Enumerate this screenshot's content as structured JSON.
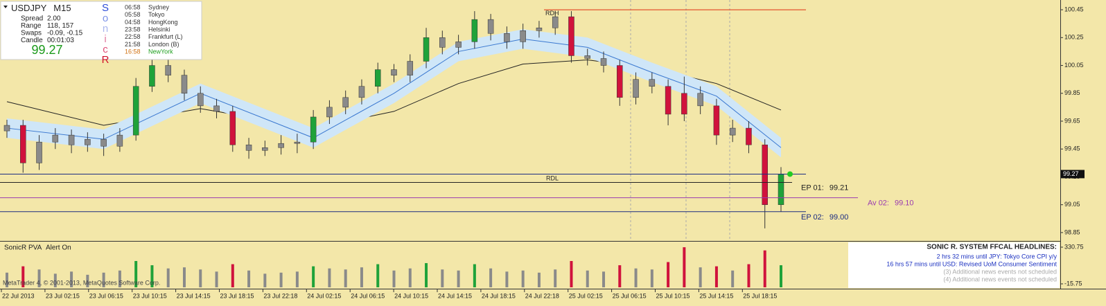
{
  "chart_data": {
    "type": "candlestick",
    "symbol": "USDJPY",
    "timeframe": "M15",
    "info": [
      {
        "label": "Spread",
        "value": "2.00"
      },
      {
        "label": "Range",
        "value": "118, 157"
      },
      {
        "label": "Swaps",
        "value": "-0.09, -0.15"
      },
      {
        "label": "Candle",
        "value": "00:01:03"
      }
    ],
    "bid": 99.27,
    "brand_letters": [
      {
        "text": "S",
        "color": "#2b4bd8"
      },
      {
        "text": "o",
        "color": "#7d93e8"
      },
      {
        "text": "n",
        "color": "#a9b6ee"
      },
      {
        "text": "i",
        "color": "#e07aa0"
      },
      {
        "text": "c",
        "color": "#e0507a"
      },
      {
        "text": "R",
        "color": "#d0102a"
      }
    ],
    "sessions": [
      {
        "time": "06:58",
        "city": "Sydney",
        "time_color": "#333",
        "city_color": "#333"
      },
      {
        "time": "05:58",
        "city": "Tokyo",
        "time_color": "#333",
        "city_color": "#333"
      },
      {
        "time": "04:58",
        "city": "HongKong",
        "time_color": "#333",
        "city_color": "#333"
      },
      {
        "time": "23:58",
        "city": "Helsinki",
        "time_color": "#333",
        "city_color": "#333"
      },
      {
        "time": "22:58",
        "city": "Frankfurt  (L)",
        "time_color": "#333",
        "city_color": "#333"
      },
      {
        "time": "21:58",
        "city": "London  (B)",
        "time_color": "#333",
        "city_color": "#333"
      },
      {
        "time": "16:58",
        "city": "NewYork",
        "time_color": "#d07010",
        "city_color": "#20a020"
      }
    ],
    "x": [
      "22 Jul 2013",
      "23 Jul 02:15",
      "23 Jul 06:15",
      "23 Jul 10:15",
      "23 Jul 14:15",
      "23 Jul 18:15",
      "23 Jul 22:18",
      "24 Jul 02:15",
      "24 Jul 06:15",
      "24 Jul 10:15",
      "24 Jul 14:15",
      "24 Jul 18:15",
      "24 Jul 22:18",
      "25 Jul 02:15",
      "25 Jul 06:15",
      "25 Jul 10:15",
      "25 Jul 14:15",
      "25 Jul 18:15"
    ],
    "ylim": [
      98.79,
      100.52
    ],
    "yticks": [
      100.45,
      100.25,
      100.05,
      99.85,
      99.65,
      99.45,
      99.25,
      99.05,
      98.85
    ],
    "ohlc": [
      [
        99.58,
        99.66,
        99.53,
        99.62
      ],
      [
        99.62,
        99.66,
        99.28,
        99.35
      ],
      [
        99.35,
        99.55,
        99.3,
        99.5
      ],
      [
        99.5,
        99.6,
        99.45,
        99.55
      ],
      [
        99.55,
        99.59,
        99.42,
        99.48
      ],
      [
        99.48,
        99.57,
        99.43,
        99.52
      ],
      [
        99.52,
        99.56,
        99.4,
        99.47
      ],
      [
        99.47,
        99.6,
        99.43,
        99.55
      ],
      [
        99.55,
        99.96,
        99.51,
        99.9
      ],
      [
        99.9,
        100.12,
        99.86,
        100.05
      ],
      [
        100.05,
        100.09,
        99.93,
        99.98
      ],
      [
        99.98,
        100.02,
        99.8,
        99.85
      ],
      [
        99.85,
        99.9,
        99.71,
        99.76
      ],
      [
        99.76,
        99.81,
        99.67,
        99.72
      ],
      [
        99.72,
        99.76,
        99.43,
        99.48
      ],
      [
        99.48,
        99.53,
        99.38,
        99.44
      ],
      [
        99.44,
        99.51,
        99.4,
        99.46
      ],
      [
        99.46,
        99.55,
        99.41,
        99.49
      ],
      [
        99.49,
        99.56,
        99.42,
        99.5
      ],
      [
        99.5,
        99.73,
        99.45,
        99.68
      ],
      [
        99.68,
        99.8,
        99.63,
        99.75
      ],
      [
        99.75,
        99.87,
        99.7,
        99.82
      ],
      [
        99.82,
        99.95,
        99.77,
        99.9
      ],
      [
        99.9,
        100.07,
        99.85,
        100.02
      ],
      [
        100.02,
        100.06,
        99.93,
        99.98
      ],
      [
        99.98,
        100.13,
        99.93,
        100.08
      ],
      [
        100.08,
        100.32,
        100.03,
        100.25
      ],
      [
        100.25,
        100.3,
        100.13,
        100.18
      ],
      [
        100.18,
        100.27,
        100.13,
        100.22
      ],
      [
        100.22,
        100.44,
        100.17,
        100.38
      ],
      [
        100.38,
        100.42,
        100.23,
        100.28
      ],
      [
        100.28,
        100.33,
        100.17,
        100.22
      ],
      [
        100.22,
        100.35,
        100.17,
        100.3
      ],
      [
        100.3,
        100.37,
        100.25,
        100.32
      ],
      [
        100.32,
        100.44,
        100.27,
        100.4
      ],
      [
        100.4,
        100.44,
        100.07,
        100.12
      ],
      [
        100.12,
        100.17,
        100.05,
        100.1
      ],
      [
        100.1,
        100.15,
        100.0,
        100.05
      ],
      [
        100.05,
        100.09,
        99.76,
        99.82
      ],
      [
        99.82,
        100.0,
        99.77,
        99.95
      ],
      [
        99.95,
        100.0,
        99.85,
        99.9
      ],
      [
        99.9,
        99.95,
        99.62,
        99.7
      ],
      [
        99.7,
        99.97,
        99.65,
        99.85
      ],
      [
        99.85,
        99.9,
        99.7,
        99.76
      ],
      [
        99.76,
        99.81,
        99.48,
        99.55
      ],
      [
        99.55,
        99.66,
        99.5,
        99.6
      ],
      [
        99.6,
        99.65,
        99.42,
        99.48
      ],
      [
        99.48,
        99.52,
        98.88,
        99.05
      ],
      [
        99.05,
        99.32,
        99.0,
        99.27
      ]
    ],
    "palette": {
      "up": "#1fa23a",
      "down": "#d0123c",
      "flat": "#8a8a8a"
    },
    "kinds": [
      "flat",
      "down",
      "flat",
      "flat",
      "flat",
      "flat",
      "flat",
      "flat",
      "up",
      "up",
      "flat",
      "flat",
      "flat",
      "flat",
      "down",
      "flat",
      "flat",
      "flat",
      "flat",
      "up",
      "flat",
      "flat",
      "flat",
      "up",
      "flat",
      "flat",
      "up",
      "flat",
      "flat",
      "up",
      "flat",
      "flat",
      "flat",
      "flat",
      "flat",
      "down",
      "flat",
      "flat",
      "down",
      "flat",
      "flat",
      "down",
      "down",
      "flat",
      "down",
      "flat",
      "down",
      "down",
      "up"
    ],
    "overlays": [
      {
        "color": "#222222",
        "index": [
          0,
          6,
          12,
          19,
          24,
          28,
          32,
          36,
          40,
          44,
          48
        ],
        "values": [
          99.79,
          99.62,
          99.74,
          99.6,
          99.72,
          99.92,
          100.06,
          100.09,
          100.03,
          99.92,
          99.73
        ]
      },
      {
        "color": "#3a78d0",
        "band_color": "#cfe6f8",
        "band_width": 0.07,
        "index": [
          0,
          6,
          12,
          19,
          24,
          28,
          32,
          36,
          40,
          44,
          48
        ],
        "values": [
          99.6,
          99.52,
          99.85,
          99.53,
          99.85,
          100.15,
          100.24,
          100.18,
          100.0,
          99.83,
          99.46
        ]
      }
    ],
    "levels": [
      {
        "name": "RDH",
        "value": 100.45,
        "color": "#e03010"
      },
      {
        "name": "RDL",
        "value": 99.27,
        "color": "#1a2a80"
      },
      {
        "name": "EP 01:",
        "value": 99.21,
        "value_label": "99.21",
        "color": "#222222"
      },
      {
        "name": "Av 02:",
        "value": 99.1,
        "value_label": "99.10",
        "color": "#9a3ab0"
      },
      {
        "name": "EP 02:",
        "value": 99.0,
        "value_label": "99.00",
        "color": "#1a2a80"
      }
    ],
    "volume": {
      "title": "SonicR PVA",
      "status": "Alert On",
      "ylim": [
        -48.4,
        376.5
      ],
      "yticks": [
        {
          "value": 330.75,
          "label": "330.75"
        },
        {
          "value": -15.75,
          "label": "-15.75"
        }
      ],
      "values": [
        90,
        150,
        120,
        80,
        100,
        70,
        90,
        110,
        200,
        160,
        130,
        140,
        120,
        100,
        170,
        110,
        80,
        90,
        100,
        150,
        130,
        120,
        140,
        170,
        110,
        130,
        180,
        120,
        110,
        170,
        130,
        100,
        110,
        90,
        120,
        200,
        110,
        100,
        160,
        130,
        120,
        190,
        330,
        140,
        150,
        110,
        170,
        300,
        160
      ]
    },
    "news": {
      "title": "SONIC R. SYSTEM  FFCAL HEADLINES:",
      "items": [
        {
          "text": "2 hrs 32 mins until JPY: Tokyo Core CPI y/y",
          "color": "#1a30c0"
        },
        {
          "text": "16 hrs 57 mins until USD: Revised UoM Consumer Sentiment",
          "color": "#1a30c0"
        },
        {
          "text": "(3)  Additional news events not scheduled",
          "color": "#aaaaaa"
        },
        {
          "text": "(4)  Additional news events not scheduled",
          "color": "#aaaaaa"
        }
      ]
    },
    "copyright": "MetaTrader 4, © 2001-2013, MetaQuotes Software Corp."
  }
}
